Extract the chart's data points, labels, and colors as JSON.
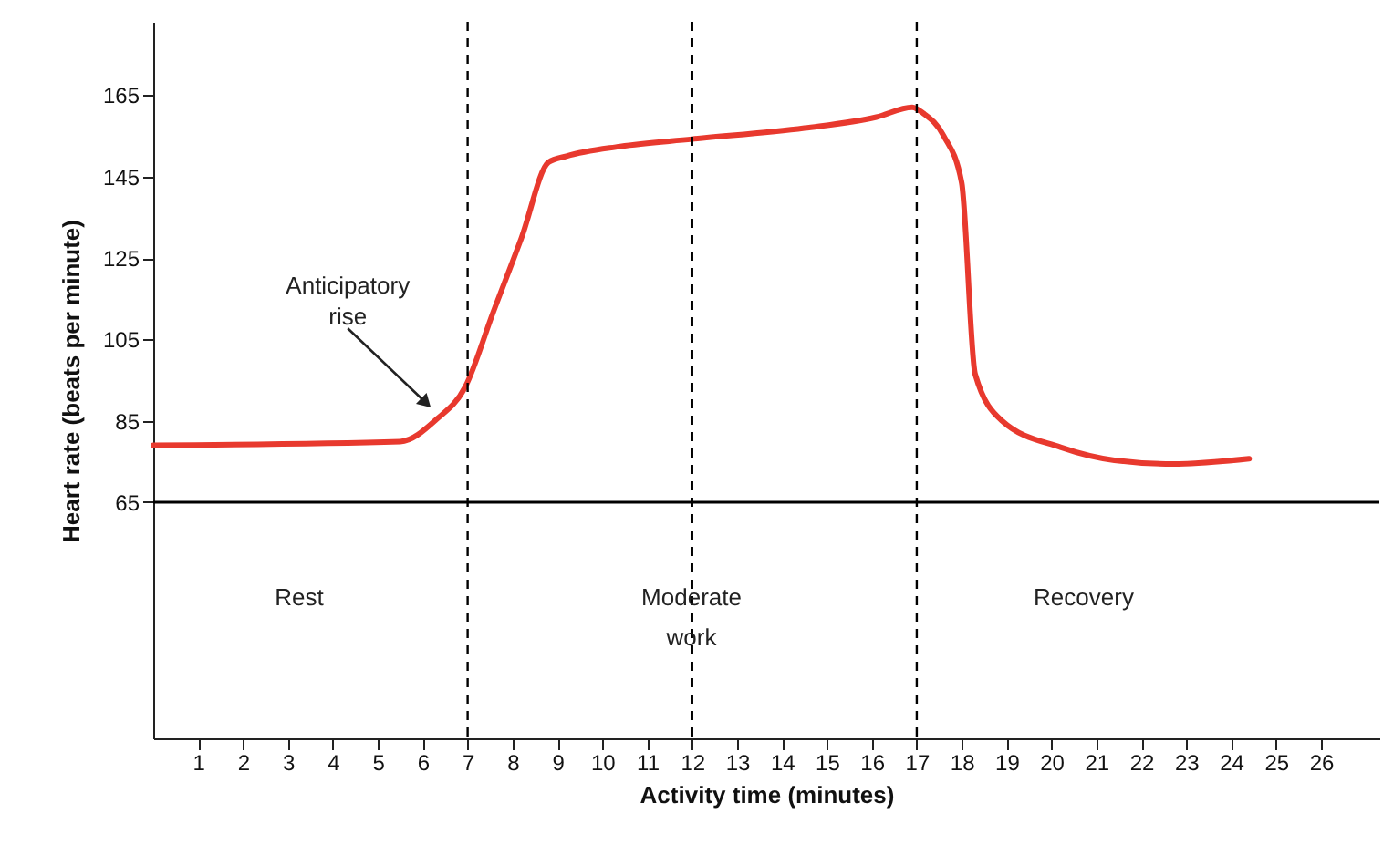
{
  "chart_data": {
    "type": "line",
    "xlabel": "Activity time (minutes)",
    "ylabel": "Heart rate (beats per minute)",
    "x": [
      0,
      5.5,
      6.3,
      6.95,
      7.56,
      8.2,
      8.8,
      9.2,
      10.4,
      12,
      14.5,
      16.1,
      16.9,
      17.15,
      17.6,
      18.0,
      18.3,
      18.9,
      20.2,
      21.4,
      22.7,
      24.4
    ],
    "series": [
      {
        "color": "#e8392e",
        "values": [
          79,
          79.9,
          85.3,
          93.4,
          111.4,
          130,
          148.5,
          150,
          152.4,
          154.2,
          156.9,
          159.6,
          162,
          160.5,
          155,
          143.5,
          96.5,
          85,
          78.5,
          75.3,
          74.4,
          75.7
        ]
      }
    ],
    "xlim": [
      0,
      27.3
    ],
    "ylim": [
      7,
      183
    ],
    "xticks": [
      1,
      2,
      3,
      4,
      5,
      6,
      7,
      8,
      9,
      10,
      11,
      12,
      13,
      14,
      15,
      16,
      17,
      18,
      19,
      20,
      21,
      22,
      23,
      24,
      25,
      26
    ],
    "yticks": [
      65,
      85,
      105,
      125,
      145,
      165
    ],
    "grid": false,
    "marker": "none",
    "line_style": "solid",
    "ref_lines": [
      {
        "axis": "y",
        "value": 65,
        "color": "#000000",
        "line_style": "solid"
      },
      {
        "axis": "x",
        "value": 7,
        "color": "#000000",
        "line_style": "dashed"
      },
      {
        "axis": "x",
        "value": 12,
        "color": "#000000",
        "line_style": "dashed"
      },
      {
        "axis": "x",
        "value": 17,
        "color": "#000000",
        "line_style": "dashed"
      }
    ],
    "annotations": [
      {
        "text": "Anticipatory rise",
        "x": 6.2,
        "y": 88
      },
      "Rest",
      "Moderate work",
      "Recovery"
    ]
  }
}
